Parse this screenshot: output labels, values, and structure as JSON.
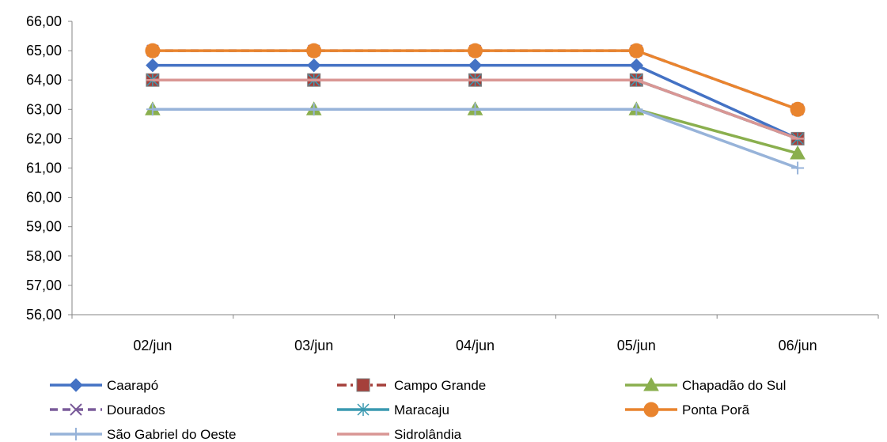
{
  "chart_data": {
    "type": "line",
    "title": "",
    "xlabel": "",
    "ylabel": "",
    "categories": [
      "02/jun",
      "03/jun",
      "04/jun",
      "05/jun",
      "06/jun"
    ],
    "ylim": [
      56,
      66
    ],
    "yticks": [
      "56,00",
      "57,00",
      "58,00",
      "59,00",
      "60,00",
      "61,00",
      "62,00",
      "63,00",
      "64,00",
      "65,00",
      "66,00"
    ],
    "grid": false,
    "legend_position": "bottom",
    "series": [
      {
        "name": "Caarapó",
        "values": [
          64.5,
          64.5,
          64.5,
          64.5,
          62.0
        ],
        "color": "#4472C4",
        "marker": "diamond",
        "dash": "solid"
      },
      {
        "name": "Campo Grande",
        "values": [
          64.0,
          64.0,
          64.0,
          64.0,
          62.0
        ],
        "color": "#A5403B",
        "marker": "square",
        "dash": "dashdot"
      },
      {
        "name": "Chapadão do Sul",
        "values": [
          63.0,
          63.0,
          63.0,
          63.0,
          61.5
        ],
        "color": "#8AAF4E",
        "marker": "triangle",
        "dash": "solid"
      },
      {
        "name": "Dourados",
        "values": [
          65.0,
          65.0,
          65.0,
          65.0,
          63.0
        ],
        "color": "#7A5B9A",
        "marker": "x",
        "dash": "dash"
      },
      {
        "name": "Maracaju",
        "values": [
          64.0,
          64.0,
          64.0,
          64.0,
          62.0
        ],
        "color": "#3A99B0",
        "marker": "star",
        "dash": "solid"
      },
      {
        "name": "Ponta Porã",
        "values": [
          65.0,
          65.0,
          65.0,
          65.0,
          63.0
        ],
        "color": "#E9842E",
        "marker": "circle",
        "dash": "solid"
      },
      {
        "name": "São Gabriel do Oeste",
        "values": [
          63.0,
          63.0,
          63.0,
          63.0,
          61.0
        ],
        "color": "#97B3D9",
        "marker": "plus",
        "dash": "solid"
      },
      {
        "name": "Sidrolândia",
        "values": [
          64.0,
          64.0,
          64.0,
          64.0,
          62.0
        ],
        "color": "#D99694",
        "marker": "dash",
        "dash": "solid"
      }
    ]
  }
}
